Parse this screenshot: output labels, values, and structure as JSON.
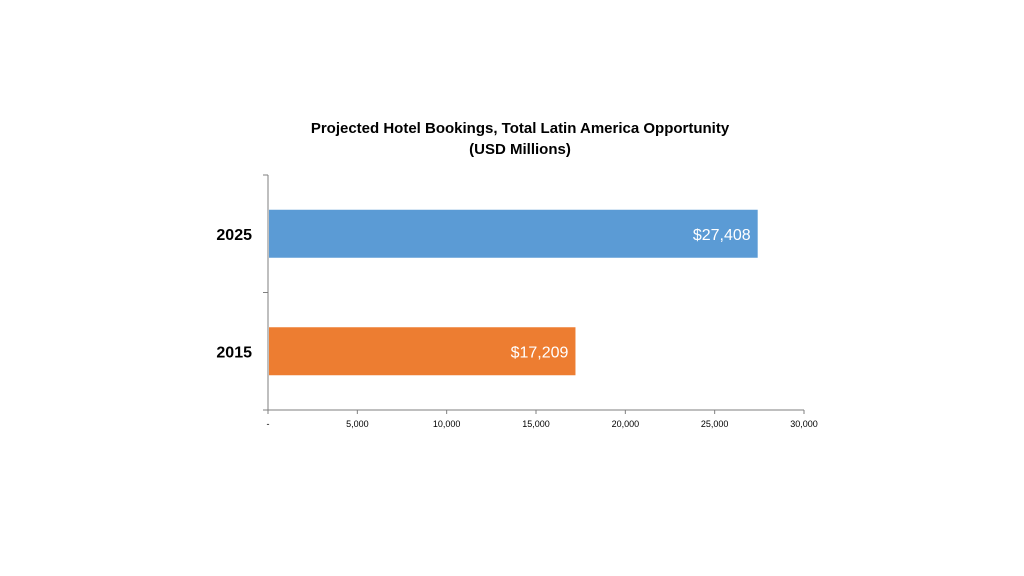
{
  "chart_data": {
    "type": "bar",
    "orientation": "horizontal",
    "title": "Projected Hotel Bookings, Total Latin America Opportunity",
    "subtitle": "(USD Millions)",
    "categories": [
      "2025",
      "2015"
    ],
    "values": [
      27408,
      17209
    ],
    "data_labels": [
      "$27,408",
      "$17,209"
    ],
    "colors": [
      "#5b9bd5",
      "#ed7d31"
    ],
    "xlim": [
      0,
      30000
    ],
    "x_ticks": [
      0,
      5000,
      10000,
      15000,
      20000,
      25000,
      30000
    ],
    "x_tick_labels": [
      "-",
      "5,000",
      "10,000",
      "15,000",
      "20,000",
      "25,000",
      "30,000"
    ],
    "grid": false,
    "legend": "none"
  }
}
